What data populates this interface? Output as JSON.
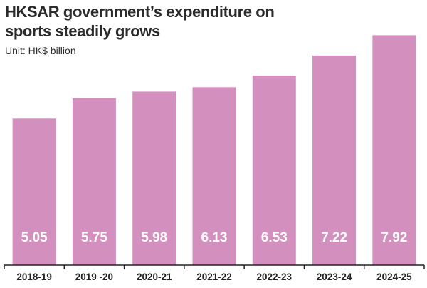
{
  "chart_data": {
    "type": "bar",
    "title": "HKSAR government’s expenditure on sports steadily grows",
    "subtitle": "Unit: HK$ billion",
    "categories": [
      "2018-19",
      "2019 -20",
      "2020-21",
      "2021-22",
      "2022-23",
      "2023-24",
      "2024-25"
    ],
    "values": [
      5.05,
      5.75,
      5.98,
      6.13,
      6.53,
      7.22,
      7.92
    ],
    "value_labels": [
      "5.05",
      "5.75",
      "5.98",
      "6.13",
      "6.53",
      "7.22",
      "7.92"
    ],
    "ylim": [
      0,
      8.2
    ],
    "grid": false,
    "legend": "none",
    "bar_color": "#d38fbd",
    "axis_color": "#222222"
  }
}
